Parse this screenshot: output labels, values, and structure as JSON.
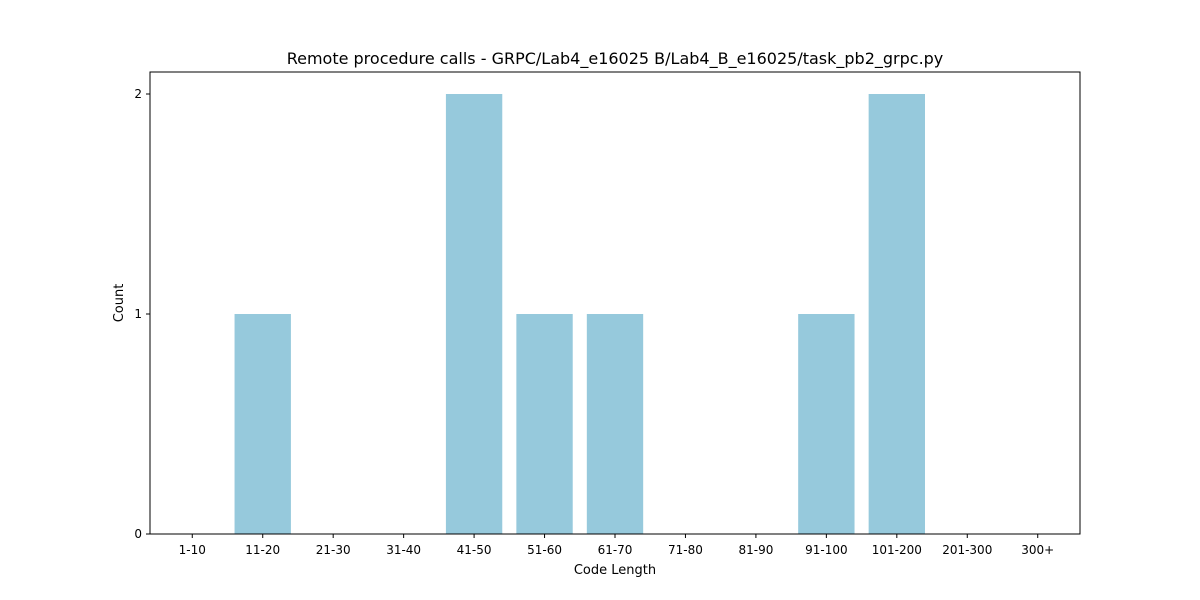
{
  "chart_data": {
    "type": "bar",
    "title": "Remote procedure calls - GRPC/Lab4_e16025 B/Lab4_B_e16025/task_pb2_grpc.py",
    "xlabel": "Code Length",
    "ylabel": "Count",
    "categories": [
      "1-10",
      "11-20",
      "21-30",
      "31-40",
      "41-50",
      "51-60",
      "61-70",
      "71-80",
      "81-90",
      "91-100",
      "101-200",
      "201-300",
      "300+"
    ],
    "values": [
      0,
      1,
      0,
      0,
      2,
      1,
      1,
      0,
      0,
      1,
      2,
      0,
      0
    ],
    "ylim": [
      0,
      2.1
    ],
    "yticks": [
      0,
      1,
      2
    ],
    "bar_color": "#96c9dc",
    "grid": false,
    "legend": "none"
  }
}
